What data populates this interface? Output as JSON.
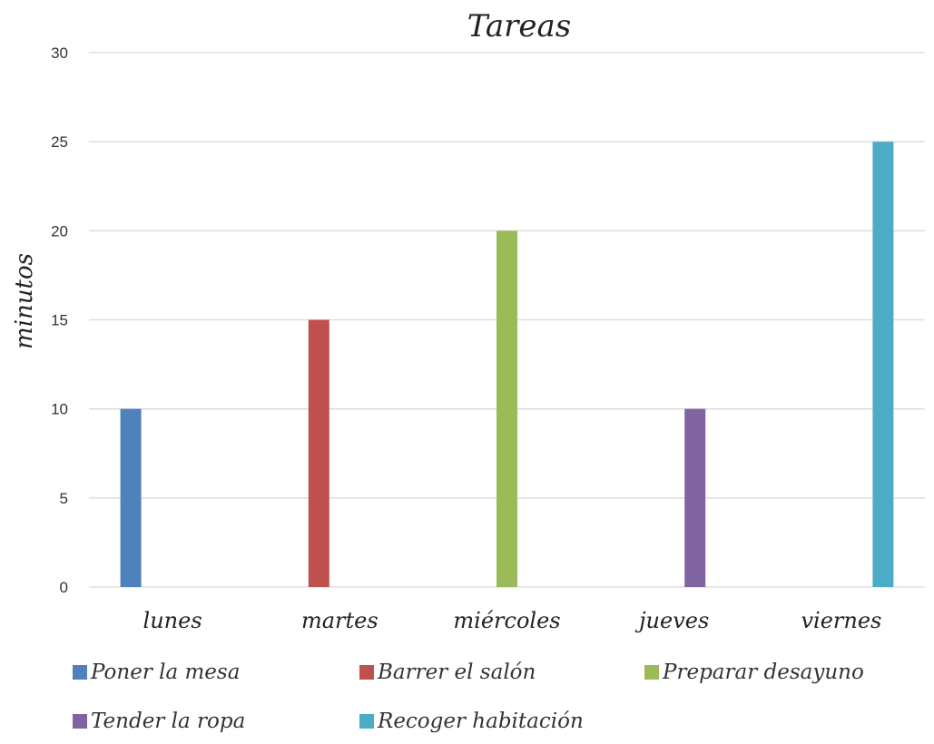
{
  "chart_data": {
    "type": "bar",
    "title": "Tareas",
    "ylabel": "minutos",
    "xlabel": "",
    "ylim": [
      0,
      30
    ],
    "yticks": [
      0,
      5,
      10,
      15,
      20,
      25,
      30
    ],
    "grid": true,
    "legend_position": "bottom",
    "categories": [
      "lunes",
      "martes",
      "miércoles",
      "jueves",
      "viernes"
    ],
    "series": [
      {
        "name": "Poner la mesa",
        "color": "#4F81BD",
        "values": [
          10,
          0,
          0,
          0,
          0
        ]
      },
      {
        "name": "Barrer el salón",
        "color": "#C0504D",
        "values": [
          0,
          15,
          0,
          0,
          0
        ]
      },
      {
        "name": "Preparar desayuno",
        "color": "#9BBB59",
        "values": [
          0,
          0,
          20,
          0,
          0
        ]
      },
      {
        "name": "Tender la ropa",
        "color": "#8064A2",
        "values": [
          0,
          0,
          0,
          10,
          0
        ]
      },
      {
        "name": "Recoger habitación",
        "color": "#4BACC6",
        "values": [
          0,
          0,
          0,
          0,
          25
        ]
      }
    ]
  }
}
